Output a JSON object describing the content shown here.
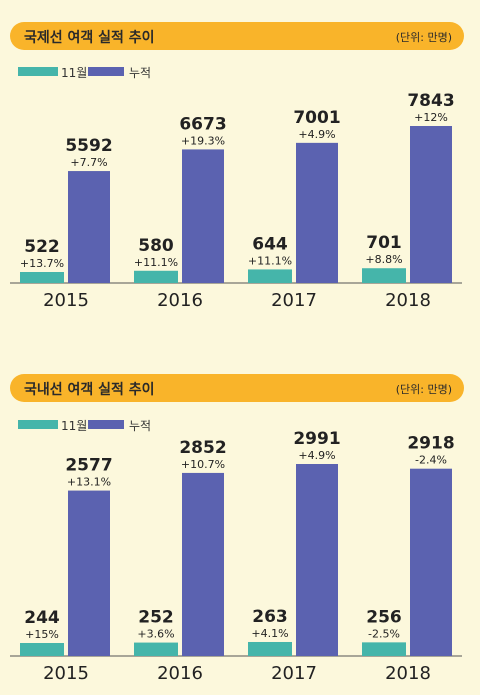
{
  "colors": {
    "monthly": "#45B5AA",
    "cumulative": "#5B62B0",
    "header": "#F9B42A",
    "background": "#FCF8DC"
  },
  "legend": {
    "monthly_label": "11월",
    "cumulative_label": "누적"
  },
  "chart_data": [
    {
      "type": "bar",
      "title": "국제선 여객 실적 추이",
      "unit": "(단위: 만명)",
      "categories": [
        "2015",
        "2016",
        "2017",
        "2018"
      ],
      "series": [
        {
          "name": "11월",
          "values": [
            522,
            580,
            644,
            701
          ],
          "growth": [
            "+13.7%",
            "+11.1%",
            "+11.1%",
            "+8.8%"
          ]
        },
        {
          "name": "누적",
          "values": [
            5592,
            6673,
            7001,
            7843
          ],
          "growth": [
            "+7.7%",
            "+19.3%",
            "+4.9%",
            "+12%"
          ]
        }
      ]
    },
    {
      "type": "bar",
      "title": "국내선 여객 실적 추이",
      "unit": "(단위: 만명)",
      "categories": [
        "2015",
        "2016",
        "2017",
        "2018"
      ],
      "series": [
        {
          "name": "11월",
          "values": [
            244,
            252,
            263,
            256
          ],
          "growth": [
            "+15%",
            "+3.6%",
            "+4.1%",
            "-2.5%"
          ]
        },
        {
          "name": "누적",
          "values": [
            2577,
            2852,
            2991,
            2918
          ],
          "growth": [
            "+13.1%",
            "+10.7%",
            "+4.9%",
            "-2.4%"
          ]
        }
      ]
    }
  ]
}
